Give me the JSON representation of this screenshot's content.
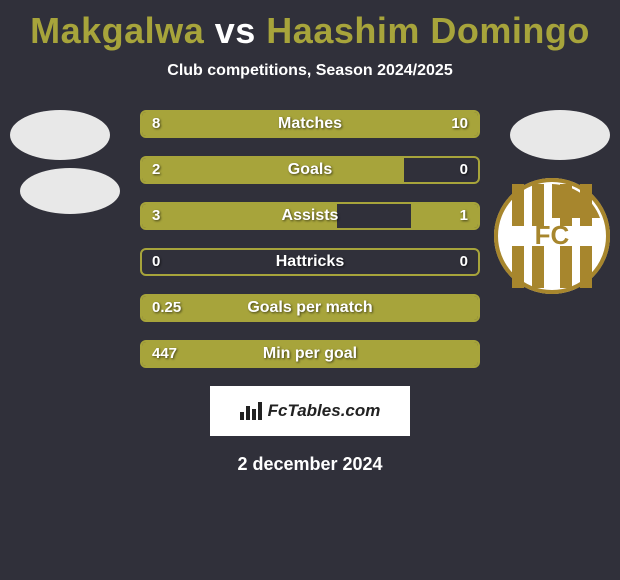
{
  "title": {
    "p1": "Makgalwa",
    "vs": "vs",
    "p2": "Haashim Domingo"
  },
  "title_colors": {
    "p1": "#a7a43b",
    "vs": "#ffffff",
    "p2": "#a7a43b"
  },
  "subtitle": "Club competitions, Season 2024/2025",
  "colors": {
    "background": "#30303a",
    "left_fill": "#a7a43b",
    "right_fill": "#a7a43b",
    "border": "#a7a43b",
    "text": "#ffffff"
  },
  "bars": [
    {
      "label": "Matches",
      "left": "8",
      "right": "10",
      "left_pct": 44,
      "right_pct": 56
    },
    {
      "label": "Goals",
      "left": "2",
      "right": "0",
      "left_pct": 78,
      "right_pct": 0
    },
    {
      "label": "Assists",
      "left": "3",
      "right": "1",
      "left_pct": 58,
      "right_pct": 20
    },
    {
      "label": "Hattricks",
      "left": "0",
      "right": "0",
      "left_pct": 0,
      "right_pct": 0
    },
    {
      "label": "Goals per match",
      "left": "0.25",
      "right": "",
      "left_pct": 100,
      "right_pct": 0
    },
    {
      "label": "Min per goal",
      "left": "447",
      "right": "",
      "left_pct": 100,
      "right_pct": 0
    }
  ],
  "attribution": "FcTables.com",
  "date": "2 december 2024",
  "club_badge": {
    "letters": "FC",
    "fg": "#a7862d",
    "bg": "#ffffff"
  }
}
